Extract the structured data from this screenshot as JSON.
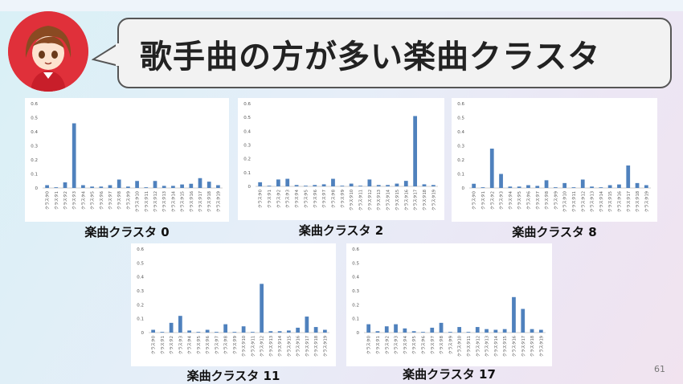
{
  "slide": {
    "title": "歌手曲の方が多い楽曲クラスタ",
    "page_number": "61",
    "accent_color": "#4f81bd"
  },
  "chart_data": [
    {
      "type": "bar",
      "caption": "楽曲クラスタ 0",
      "categories": [
        "クラスタ0",
        "クラスタ1",
        "クラスタ2",
        "クラスタ3",
        "クラスタ4",
        "クラスタ5",
        "クラスタ6",
        "クラスタ7",
        "クラスタ8",
        "クラスタ9",
        "クラスタ10",
        "クラスタ11",
        "クラスタ12",
        "クラスタ13",
        "クラスタ14",
        "クラスタ15",
        "クラスタ16",
        "クラスタ17",
        "クラスタ18",
        "クラスタ19"
      ],
      "values": [
        0.02,
        0.005,
        0.04,
        0.46,
        0.02,
        0.01,
        0.01,
        0.02,
        0.06,
        0.01,
        0.05,
        0.005,
        0.05,
        0.015,
        0.015,
        0.025,
        0.03,
        0.07,
        0.045,
        0.02
      ],
      "yticks": [
        "0",
        "0.1",
        "0.2",
        "0.3",
        "0.4",
        "0.5",
        "0.6"
      ],
      "ylim": [
        0,
        0.6
      ]
    },
    {
      "type": "bar",
      "caption": "楽曲クラスタ 2",
      "categories": [
        "クラスタ0",
        "クラスタ1",
        "クラスタ2",
        "クラスタ3",
        "クラスタ4",
        "クラスタ5",
        "クラスタ6",
        "クラスタ7",
        "クラスタ8",
        "クラスタ9",
        "クラスタ10",
        "クラスタ11",
        "クラスタ12",
        "クラスタ13",
        "クラスタ14",
        "クラスタ15",
        "クラスタ16",
        "クラスタ17",
        "クラスタ18",
        "クラスタ19"
      ],
      "values": [
        0.03,
        0.005,
        0.05,
        0.055,
        0.01,
        0.005,
        0.01,
        0.015,
        0.055,
        0.005,
        0.02,
        0.005,
        0.05,
        0.01,
        0.01,
        0.02,
        0.04,
        0.51,
        0.015,
        0.01
      ],
      "yticks": [
        "0",
        "0.1",
        "0.2",
        "0.3",
        "0.4",
        "0.5",
        "0.6"
      ],
      "ylim": [
        0,
        0.6
      ]
    },
    {
      "type": "bar",
      "caption": "楽曲クラスタ 8",
      "categories": [
        "クラスタ0",
        "クラスタ1",
        "クラスタ2",
        "クラスタ3",
        "クラスタ4",
        "クラスタ5",
        "クラスタ6",
        "クラスタ7",
        "クラスタ8",
        "クラスタ9",
        "クラスタ10",
        "クラスタ11",
        "クラスタ12",
        "クラスタ13",
        "クラスタ14",
        "クラスタ15",
        "クラスタ16",
        "クラスタ17",
        "クラスタ18",
        "クラスタ19"
      ],
      "values": [
        0.03,
        0.005,
        0.28,
        0.1,
        0.01,
        0.01,
        0.02,
        0.015,
        0.055,
        0.005,
        0.035,
        0.005,
        0.06,
        0.01,
        0.005,
        0.02,
        0.025,
        0.16,
        0.035,
        0.02
      ],
      "yticks": [
        "0",
        "0.1",
        "0.2",
        "0.3",
        "0.4",
        "0.5",
        "0.6"
      ],
      "ylim": [
        0,
        0.6
      ]
    },
    {
      "type": "bar",
      "caption": "楽曲クラスタ 11",
      "categories": [
        "クラスタ0",
        "クラスタ1",
        "クラスタ2",
        "クラスタ3",
        "クラスタ4",
        "クラスタ5",
        "クラスタ6",
        "クラスタ7",
        "クラスタ8",
        "クラスタ9",
        "クラスタ10",
        "クラスタ11",
        "クラスタ12",
        "クラスタ13",
        "クラスタ14",
        "クラスタ15",
        "クラスタ16",
        "クラスタ17",
        "クラスタ18",
        "クラスタ19"
      ],
      "values": [
        0.02,
        0.005,
        0.07,
        0.12,
        0.015,
        0.005,
        0.02,
        0.005,
        0.06,
        0.005,
        0.045,
        0.005,
        0.35,
        0.01,
        0.01,
        0.015,
        0.035,
        0.115,
        0.04,
        0.02
      ],
      "yticks": [
        "0",
        "0.1",
        "0.2",
        "0.3",
        "0.4",
        "0.5",
        "0.6"
      ],
      "ylim": [
        0,
        0.6
      ]
    },
    {
      "type": "bar",
      "caption": "楽曲クラスタ 17",
      "categories": [
        "クラスタ0",
        "クラスタ1",
        "クラスタ2",
        "クラスタ3",
        "クラスタ4",
        "クラスタ5",
        "クラスタ6",
        "クラスタ7",
        "クラスタ8",
        "クラスタ9",
        "クラスタ10",
        "クラスタ11",
        "クラスタ12",
        "クラスタ13",
        "クラスタ14",
        "クラスタ15",
        "クラスタ16",
        "クラスタ17",
        "クラスタ18",
        "クラスタ19"
      ],
      "values": [
        0.06,
        0.01,
        0.045,
        0.06,
        0.03,
        0.01,
        0.005,
        0.035,
        0.07,
        0.005,
        0.04,
        0.005,
        0.04,
        0.025,
        0.02,
        0.025,
        0.255,
        0.17,
        0.025,
        0.02
      ],
      "yticks": [
        "0",
        "0.1",
        "0.2",
        "0.3",
        "0.4",
        "0.5",
        "0.6"
      ],
      "ylim": [
        0,
        0.6
      ]
    }
  ]
}
